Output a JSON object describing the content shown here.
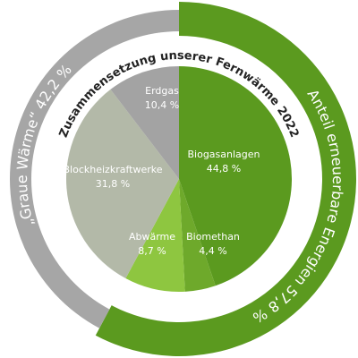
{
  "chart_data": [
    {
      "type": "pie",
      "title": "Zusammensetzung unserer Fernwärme 2022",
      "categories": [
        "Biogasanlagen",
        "Biomethan",
        "Abwärme",
        "Blockheizkraftwerke",
        "Erdgas"
      ],
      "values": [
        44.8,
        4.4,
        8.7,
        31.8,
        10.4
      ],
      "value_labels": [
        "44,8 %",
        "4,4 %",
        "8,7 %",
        "31,8 %",
        "10,4 %"
      ],
      "colors": [
        "#5b9a1f",
        "#6ea92b",
        "#8ec640",
        "#b3b9a8",
        "#a3a3a3"
      ]
    },
    {
      "type": "donut",
      "categories": [
        "Anteil erneuerbare Energien",
        "„Graue Wärme“"
      ],
      "values": [
        57.8,
        42.2
      ],
      "value_labels": [
        "57,8 %",
        "42,2 %"
      ],
      "colors": [
        "#5b9a1f",
        "#a6a6a6"
      ]
    }
  ]
}
